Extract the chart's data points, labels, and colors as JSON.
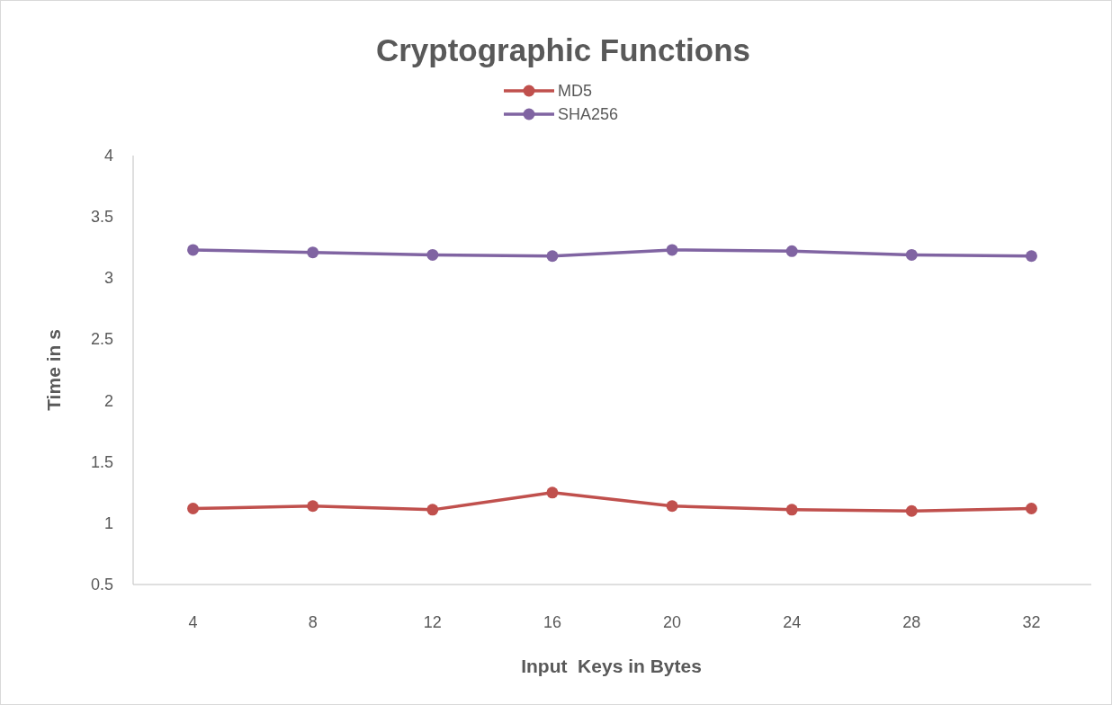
{
  "chart_data": {
    "type": "line",
    "title": "Cryptographic Functions",
    "xlabel": "Input  Keys in Bytes",
    "ylabel": "Time in s",
    "categories": [
      "4",
      "8",
      "12",
      "16",
      "20",
      "24",
      "28",
      "32"
    ],
    "series": [
      {
        "name": "MD5",
        "color": "#c0504d",
        "values": [
          1.12,
          1.14,
          1.11,
          1.25,
          1.14,
          1.11,
          1.1,
          1.12
        ]
      },
      {
        "name": "SHA256",
        "color": "#8064a2",
        "values": [
          3.23,
          3.21,
          3.19,
          3.18,
          3.23,
          3.22,
          3.19,
          3.18
        ]
      }
    ],
    "ylim": [
      0.5,
      4
    ],
    "yticks": [
      0.5,
      1,
      1.5,
      2,
      2.5,
      3,
      3.5,
      4
    ],
    "grid": false,
    "legend": "top",
    "marker": "circle",
    "line_style": "solid"
  }
}
